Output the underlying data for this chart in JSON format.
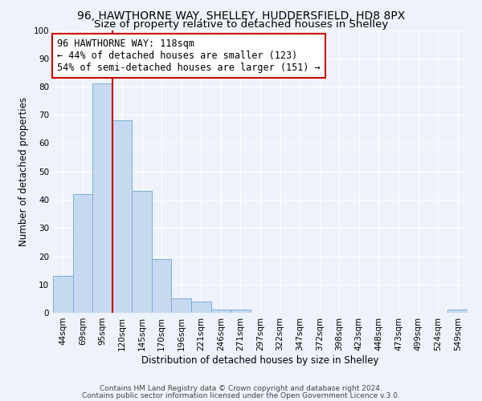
{
  "title": "96, HAWTHORNE WAY, SHELLEY, HUDDERSFIELD, HD8 8PX",
  "subtitle": "Size of property relative to detached houses in Shelley",
  "xlabel": "Distribution of detached houses by size in Shelley",
  "ylabel": "Number of detached properties",
  "bar_labels": [
    "44sqm",
    "69sqm",
    "95sqm",
    "120sqm",
    "145sqm",
    "170sqm",
    "196sqm",
    "221sqm",
    "246sqm",
    "271sqm",
    "297sqm",
    "322sqm",
    "347sqm",
    "372sqm",
    "398sqm",
    "423sqm",
    "448sqm",
    "473sqm",
    "499sqm",
    "524sqm",
    "549sqm"
  ],
  "bar_values": [
    13,
    42,
    81,
    68,
    43,
    19,
    5,
    4,
    1,
    1,
    0,
    0,
    0,
    0,
    0,
    0,
    0,
    0,
    0,
    0,
    1
  ],
  "bar_color": "#c6d9f0",
  "bar_edge_color": "#7bafd4",
  "vline_color": "#cc0000",
  "annotation_text": "96 HAWTHORNE WAY: 118sqm\n← 44% of detached houses are smaller (123)\n54% of semi-detached houses are larger (151) →",
  "annotation_box_color": "#ffffff",
  "annotation_box_edge_color": "#cc0000",
  "ylim": [
    0,
    100
  ],
  "yticks": [
    0,
    10,
    20,
    30,
    40,
    50,
    60,
    70,
    80,
    90,
    100
  ],
  "footer_line1": "Contains HM Land Registry data © Crown copyright and database right 2024.",
  "footer_line2": "Contains public sector information licensed under the Open Government Licence v.3.0.",
  "bg_color": "#eef2fa",
  "grid_color": "#ffffff",
  "title_fontsize": 10,
  "subtitle_fontsize": 9.5,
  "axis_label_fontsize": 8.5,
  "tick_fontsize": 7.5,
  "annotation_fontsize": 8.5,
  "footer_fontsize": 6.5
}
